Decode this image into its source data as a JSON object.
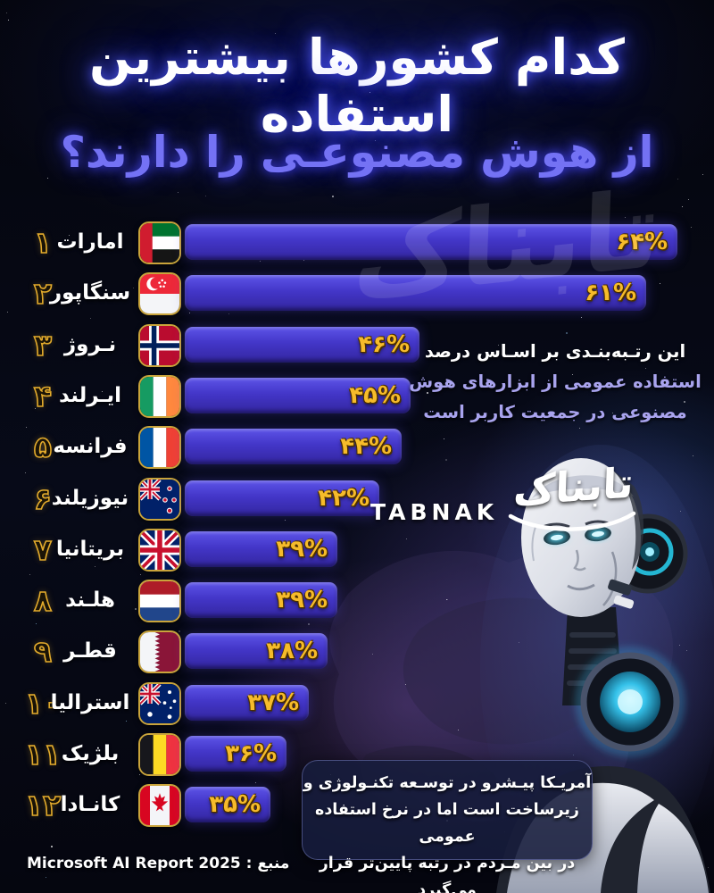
{
  "title": {
    "line1": "کدام کشورها بیشترین استفاده",
    "line2": "از هوش مصنوعـی را دارند؟"
  },
  "watermark_text": "تابناک",
  "logo": {
    "latin": "TABNAK",
    "persian": "تابناک"
  },
  "side_note": {
    "line1": "این رتـبه‌بنـدی بر اسـاس درصد",
    "line2": "استفاده عمومی از ابزارهای هوش",
    "line3": "مصنوعی در جمعیت کاربر است"
  },
  "bottom_note": {
    "line1": "آمریـکا پیـشرو در توسـعه تکنـولوژی و",
    "line2": "زیرساخت است اما در نرخ استفاده عمومی",
    "line3": "در بین مـردم در رتبه پایین‌تر قرار می‌گیرد"
  },
  "source_label": "منبع : Microsoft AI Report 2025",
  "chart_data": {
    "type": "bar",
    "orientation": "horizontal",
    "rtl_labels": true,
    "title": "کدام کشورها بیشترین استفاده از هوش مصنوعی را دارند؟",
    "unit": "%",
    "source": "Microsoft AI Report 2025",
    "categories": [
      "امارات",
      "سنگاپور",
      "نـروژ",
      "ایـرلند",
      "فرانسه",
      "نیوزیلند",
      "بریتانیا",
      "هلـند",
      "قطـر",
      "استرالیا",
      "بلژیک",
      "کانـادا"
    ],
    "values": [
      64,
      61,
      46,
      45,
      44,
      42,
      39,
      39,
      38,
      37,
      36,
      35
    ],
    "ranks_fa": [
      "۱",
      "۲",
      "۳",
      "۴",
      "۵",
      "۶",
      "۷",
      "۸",
      "۹",
      "۱۰",
      "۱۱",
      "۱۲"
    ],
    "value_labels_fa": [
      "۶۴%",
      "۶۱%",
      "۴۶%",
      "۴۵%",
      "۴۴%",
      "۴۲%",
      "۳۹%",
      "۳۹%",
      "۳۸%",
      "۳۷%",
      "۳۶%",
      "۳۵%"
    ],
    "flag_icons": [
      "uae-flag-icon",
      "singapore-flag-icon",
      "norway-flag-icon",
      "ireland-flag-icon",
      "france-flag-icon",
      "new-zealand-flag-icon",
      "uk-flag-icon",
      "netherlands-flag-icon",
      "qatar-flag-icon",
      "australia-flag-icon",
      "belgium-flag-icon",
      "canada-flag-icon"
    ],
    "bar_widths_pct": [
      100,
      93.7,
      47.6,
      45.8,
      44.0,
      39.5,
      31.0,
      31.0,
      29.0,
      25.2,
      20.7,
      17.4
    ],
    "xlim": [
      0,
      64
    ],
    "legend": "none",
    "grid": false
  },
  "colors": {
    "background": "#05060f",
    "bar_top": "#5d54e8",
    "bar_bottom": "#33269f",
    "value_gold": "#f6bb2a",
    "rank_outline_gold": "#e3ab2c",
    "title_primary": "#ffffff",
    "title_secondary": "#7472f4",
    "note_secondary": "#a9a4ee",
    "flag_border": "#c9a43b"
  }
}
